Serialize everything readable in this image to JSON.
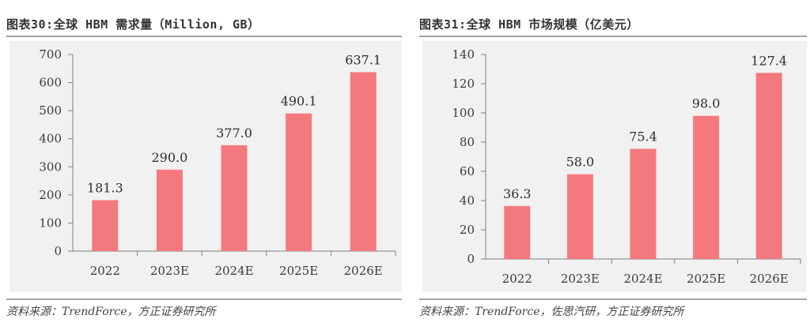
{
  "colors": {
    "bar": "#f4797e",
    "axis": "#808080",
    "plot_bg": "#f1f1f1"
  },
  "chart_data": [
    {
      "type": "bar",
      "title": "图表30:全球 HBM 需求量（Million, GB）",
      "categories": [
        "2022",
        "2023E",
        "2024E",
        "2025E",
        "2026E"
      ],
      "values": [
        181.3,
        290.0,
        377.0,
        490.1,
        637.1
      ],
      "value_labels": [
        "181.3",
        "290.0",
        "377.0",
        "490.1",
        "637.1"
      ],
      "ylim": [
        0,
        700
      ],
      "yticks": [
        0,
        100,
        200,
        300,
        400,
        500,
        600,
        700
      ],
      "grid": false,
      "source": "资料来源：TrendForce，方正证券研究所"
    },
    {
      "type": "bar",
      "title": "图表31:全球 HBM 市场规模（亿美元）",
      "categories": [
        "2022",
        "2023E",
        "2024E",
        "2025E",
        "2026E"
      ],
      "values": [
        36.3,
        58.0,
        75.4,
        98.0,
        127.4
      ],
      "value_labels": [
        "36.3",
        "58.0",
        "75.4",
        "98.0",
        "127.4"
      ],
      "ylim": [
        0,
        140
      ],
      "yticks": [
        0,
        20,
        40,
        60,
        80,
        100,
        120,
        140
      ],
      "grid": false,
      "source": "资料来源：TrendForce，佐思汽研，方正证券研究所"
    }
  ]
}
